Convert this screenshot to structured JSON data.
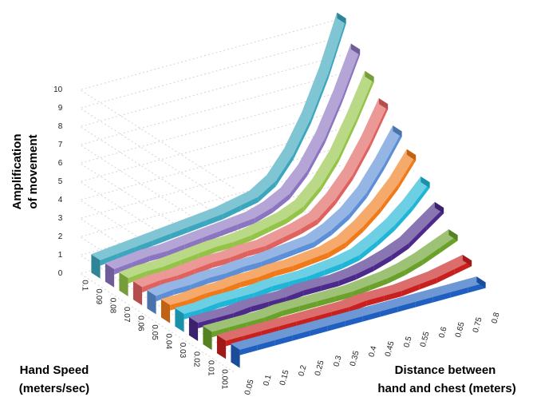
{
  "chart_data": {
    "type": "ribbon3d",
    "y_label": [
      "Amplification",
      "of movement"
    ],
    "series_axis_label": [
      "Hand Speed",
      "(meters/sec)"
    ],
    "x_label": [
      "Distance between",
      "hand and chest (meters)"
    ],
    "categories": [
      "0.05",
      "0.1",
      "0.15",
      "0.2",
      "0.25",
      "0.3",
      "0.35",
      "0.4",
      "0.45",
      "0.5",
      "0.55",
      "0.6",
      "0.65",
      "0.75",
      "0.8"
    ],
    "ylim": [
      0,
      10
    ],
    "yticks": [
      0,
      1,
      2,
      3,
      4,
      5,
      6,
      7,
      8,
      9,
      10
    ],
    "grid": true,
    "series": [
      {
        "name": "0.1",
        "color": "#3ba6bd",
        "values": [
          1,
          1.1,
          1.2,
          1.3,
          1.4,
          1.5,
          1.6,
          1.7,
          1.9,
          2.1,
          2.7,
          3.9,
          5.6,
          7.8,
          10.5
        ]
      },
      {
        "name": "0.09",
        "color": "#8b74c0",
        "values": [
          1,
          1.1,
          1.2,
          1.2,
          1.3,
          1.4,
          1.5,
          1.6,
          1.7,
          2.0,
          2.5,
          3.5,
          5.0,
          7.0,
          9.3
        ]
      },
      {
        "name": "0.08",
        "color": "#93c447",
        "values": [
          1,
          1.1,
          1.1,
          1.2,
          1.3,
          1.4,
          1.4,
          1.5,
          1.7,
          1.9,
          2.3,
          3.2,
          4.5,
          6.3,
          8.3
        ]
      },
      {
        "name": "0.07",
        "color": "#e0625f",
        "values": [
          1,
          1.1,
          1.1,
          1.2,
          1.3,
          1.3,
          1.4,
          1.4,
          1.6,
          1.8,
          2.1,
          2.9,
          4.0,
          5.5,
          7.3
        ]
      },
      {
        "name": "0.06",
        "color": "#5c8fd6",
        "values": [
          1,
          1.1,
          1.1,
          1.2,
          1.2,
          1.3,
          1.3,
          1.4,
          1.5,
          1.6,
          2.0,
          2.6,
          3.5,
          4.8,
          6.3
        ]
      },
      {
        "name": "0.05",
        "color": "#f07a1a",
        "values": [
          1,
          1,
          1.1,
          1.1,
          1.2,
          1.2,
          1.3,
          1.3,
          1.4,
          1.5,
          1.8,
          2.4,
          3.2,
          4.2,
          5.5
        ]
      },
      {
        "name": "0.04",
        "color": "#1fb5d6",
        "values": [
          1,
          1,
          1.1,
          1.1,
          1.1,
          1.2,
          1.2,
          1.2,
          1.3,
          1.4,
          1.6,
          2.1,
          2.7,
          3.5,
          4.5
        ]
      },
      {
        "name": "0.03",
        "color": "#4b2a8a",
        "values": [
          1,
          1,
          1,
          1.1,
          1.1,
          1.1,
          1.2,
          1.2,
          1.2,
          1.3,
          1.5,
          1.8,
          2.2,
          2.9,
          3.6
        ]
      },
      {
        "name": "0.02",
        "color": "#69a12a",
        "values": [
          1,
          1,
          1,
          1,
          1.1,
          1.1,
          1.1,
          1.1,
          1.1,
          1.2,
          1.3,
          1.5,
          1.8,
          2.2,
          2.6
        ]
      },
      {
        "name": "0.01",
        "color": "#c8201f",
        "values": [
          1,
          1,
          1,
          1,
          1,
          1,
          1,
          1,
          1.1,
          1.1,
          1.1,
          1.2,
          1.3,
          1.5,
          1.7
        ]
      },
      {
        "name": "0.001",
        "color": "#1f5fbf",
        "values": [
          1,
          1,
          1,
          1,
          1,
          1,
          1,
          1,
          1,
          1,
          1,
          1,
          1,
          1,
          1
        ]
      }
    ]
  }
}
